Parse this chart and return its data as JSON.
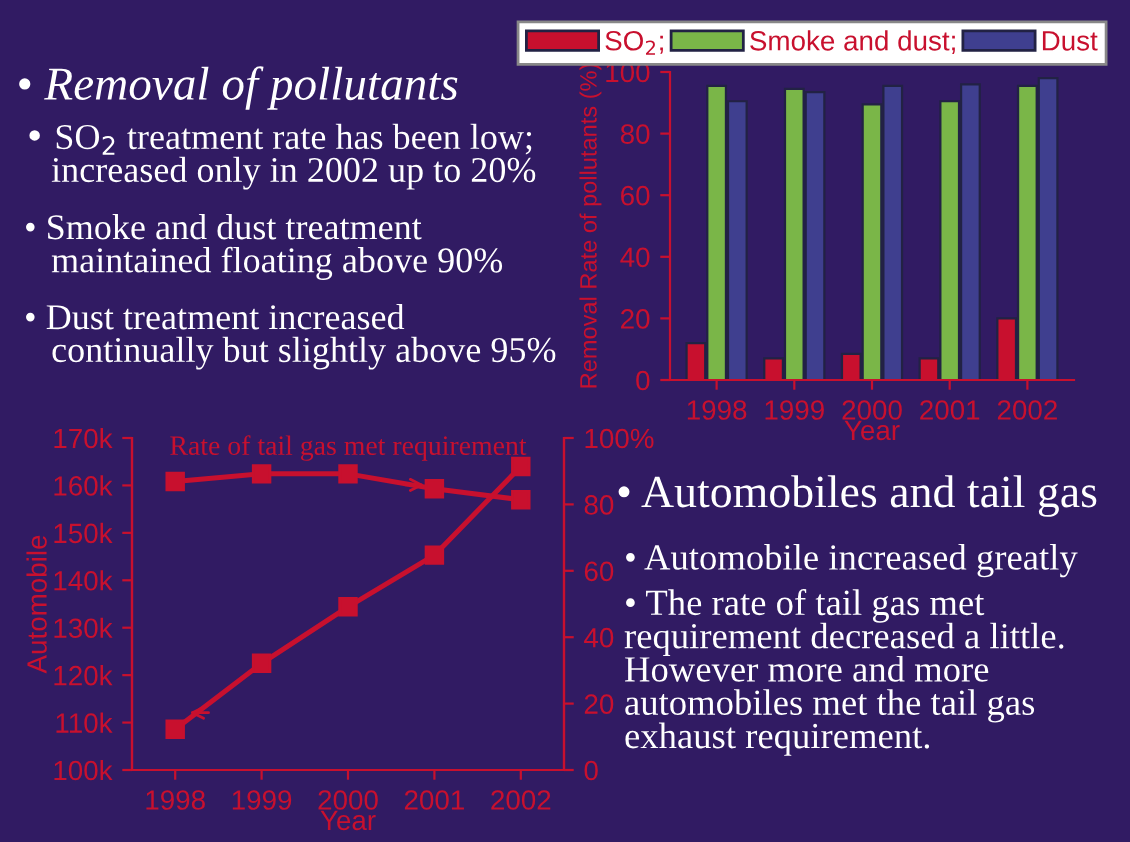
{
  "chart_data": [
    {
      "type": "other",
      "title": "• Removal of pollutants",
      "annotations": [
        "• SO$_{2}$ treatment rate has been low;\n   increased only in 2002 up to 20%",
        "• Smoke and dust treatment\n   maintained floating above 90%",
        "• Dust treatment increased\n   continually but slightly above 95%"
      ]
    },
    {
      "type": "bar",
      "categories": [
        "1998",
        "1999",
        "2000",
        "2001",
        "2002"
      ],
      "xlabel": "Year",
      "ylabel": "Removal Rate of pollutants (%)",
      "ylim": [
        0,
        100
      ],
      "yticks": [
        0,
        20,
        40,
        60,
        80,
        100
      ],
      "legend": "top",
      "grid": false,
      "series": [
        {
          "name": "SO$_{2}$;",
          "color": "#c8102e",
          "values": [
            12,
            7,
            8.5,
            7,
            20
          ]
        },
        {
          "name": "Smoke and dust;",
          "color": "#7ab648",
          "values": [
            95.5,
            94.5,
            89.5,
            90.5,
            95.5
          ]
        },
        {
          "name": "Dust",
          "color": "#3f3f8f",
          "values": [
            90.5,
            93.5,
            95.5,
            96,
            98
          ]
        }
      ]
    },
    {
      "type": "line",
      "title": "Rate of tail gas met requirement",
      "xlabel": "Year",
      "ylabel": "Automobile",
      "x": [
        1998,
        1999,
        2000,
        2001,
        2002
      ],
      "xlim": [
        1997.5,
        2002.5
      ],
      "xticks": [
        1998,
        1999,
        2000,
        2001,
        2002
      ],
      "ylim": [
        100000,
        170000
      ],
      "yticks": [
        {
          "value": 100000,
          "label": "100k"
        },
        {
          "value": 110000,
          "label": "110k"
        },
        {
          "value": 120000,
          "label": "120k"
        },
        {
          "value": 130000,
          "label": "130k"
        },
        {
          "value": 140000,
          "label": "140k"
        },
        {
          "value": 150000,
          "label": "150k"
        },
        {
          "value": 160000,
          "label": "160k"
        },
        {
          "value": 170000,
          "label": "170k"
        }
      ],
      "y2lim": [
        0,
        100
      ],
      "y2ticks": [
        0,
        20,
        40,
        60,
        80,
        {
          "value": 100,
          "label": "100%"
        }
      ],
      "marker": "square",
      "line_style": "solid",
      "grid": false,
      "legend": false,
      "series": [
        {
          "color": "#c8102e",
          "values": [
            108600,
            122500,
            134400,
            145300,
            164000
          ]
        },
        {
          "color": "#c8102e",
          "axis": "y2",
          "values": [
            86.9,
            89.2,
            89.2,
            84.7,
            81.4
          ]
        }
      ]
    },
    {
      "type": "other",
      "title": "• Automobiles and tail gas",
      "annotations": [
        "• Automobile increased greatly",
        "• The rate of tail gas met\nrequirement decreased a little.\nHowever more and more\nautomobiles met the tail gas\nexhaust requirement."
      ]
    }
  ]
}
